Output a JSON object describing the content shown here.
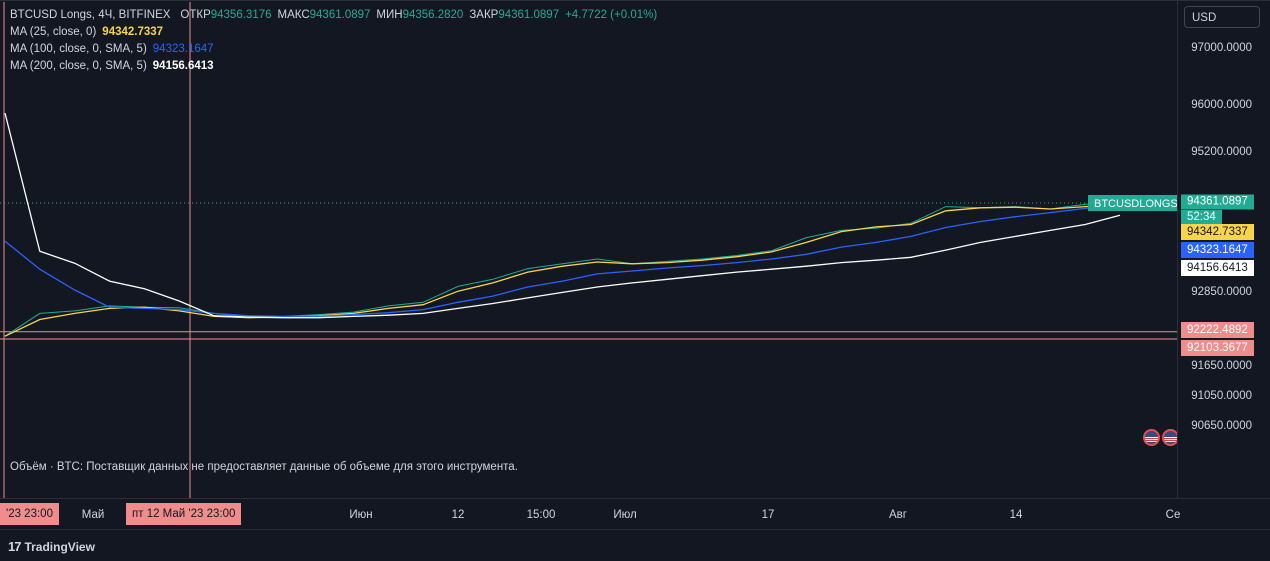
{
  "header": {
    "symbol": "BTCUSD Longs, 4Ч, BITFINEX",
    "open_label": "ОТКР",
    "open": "94356.3176",
    "high_label": "МАКС",
    "high": "94361.0897",
    "low_label": "МИН",
    "low": "94356.2820",
    "close_label": "ЗАКР",
    "close": "94361.0897",
    "change": "+4.7722 (+0.01%)",
    "indicators": [
      {
        "label": "MA (25, close, 0)",
        "value": "94342.7337",
        "color": "#f7d44a"
      },
      {
        "label": "MA (100, close, 0, SMA, 5)",
        "value": "94323.1647",
        "color": "#2962ff"
      },
      {
        "label": "MA (200, close, 0, SMA, 5)",
        "value": "94156.6413",
        "color": "#ffffff"
      }
    ]
  },
  "volume_text": "Объём · BTC: Поставщик данных не предоставляет данные об объеме для этого инструмента.",
  "currency_button": "USD",
  "badges": {
    "last_symbol": "BTCUSDLONGS",
    "last_price": "94361.0897",
    "countdown": "52:34",
    "line_a": "92222.4892",
    "line_b": "92103.3677",
    "time_left": "'23   23:00",
    "time_cursor": "пт 12 Май '23   23:00"
  },
  "chart_data": {
    "type": "line",
    "title": "",
    "xlabel": "",
    "ylabel": "",
    "ylim": [
      90450,
      97400
    ],
    "y_ticks": [
      "97000.0000",
      "96000.0000",
      "95200.0000",
      "92850.0000",
      "91650.0000",
      "91050.0000",
      "90650.0000"
    ],
    "y_tick_values": [
      97000,
      96000,
      95200,
      92850,
      91650,
      91050,
      90650
    ],
    "x_ticks": [
      "Май",
      "Июн",
      "12",
      "15:00",
      "Июл",
      "17",
      "Авг",
      "14",
      "Се"
    ],
    "x": [
      0,
      10,
      20,
      30,
      40,
      50,
      60,
      70,
      80,
      90,
      100,
      110,
      120,
      130,
      140,
      150,
      160,
      170,
      180,
      190,
      200,
      210,
      220,
      230,
      240,
      250,
      260,
      270,
      280,
      290,
      300,
      310,
      320
    ],
    "horizontal_lines": [
      {
        "value": 92222.4892,
        "color": "#f08c8c"
      },
      {
        "value": 92103.3677,
        "color": "#f08c8c"
      },
      {
        "value": 94361.0897,
        "color": "#22ab94",
        "dashed": true
      }
    ],
    "series": [
      {
        "name": "BTCUSD Longs",
        "color": "#22ab94",
        "values": [
          92150,
          92520,
          92560,
          92640,
          92620,
          92610,
          92520,
          92460,
          92470,
          92500,
          92540,
          92640,
          92700,
          92960,
          93080,
          93260,
          93340,
          93420,
          93340,
          93380,
          93420,
          93480,
          93560,
          93780,
          93900,
          93940,
          94020,
          94300,
          94280,
          94300,
          94260,
          94340,
          94361
        ]
      },
      {
        "name": "MA (25, close, 0)",
        "color": "#f7d44a",
        "values": [
          92150,
          92420,
          92520,
          92600,
          92620,
          92560,
          92470,
          92450,
          92460,
          92480,
          92520,
          92600,
          92660,
          92880,
          93020,
          93200,
          93300,
          93370,
          93340,
          93360,
          93400,
          93460,
          93540,
          93700,
          93880,
          93960,
          94000,
          94230,
          94280,
          94290,
          94260,
          94300,
          94342
        ]
      },
      {
        "name": "MA (100, close, 0, SMA, 5)",
        "color": "#2962ff",
        "values": [
          93720,
          93250,
          92900,
          92620,
          92600,
          92580,
          92520,
          92480,
          92470,
          92470,
          92500,
          92530,
          92580,
          92700,
          92800,
          92950,
          93050,
          93170,
          93220,
          93270,
          93310,
          93360,
          93420,
          93500,
          93620,
          93700,
          93800,
          93950,
          94050,
          94130,
          94200,
          94270,
          94323
        ]
      },
      {
        "name": "MA (200, close, 0, SMA, 5)",
        "color": "#ffffff",
        "values": [
          95880,
          93550,
          93350,
          93050,
          92920,
          92720,
          92480,
          92460,
          92450,
          92450,
          92470,
          92490,
          92520,
          92600,
          92680,
          92770,
          92860,
          92950,
          93020,
          93080,
          93140,
          93200,
          93250,
          93300,
          93360,
          93400,
          93450,
          93570,
          93700,
          93800,
          93900,
          94000,
          94156
        ]
      }
    ]
  }
}
